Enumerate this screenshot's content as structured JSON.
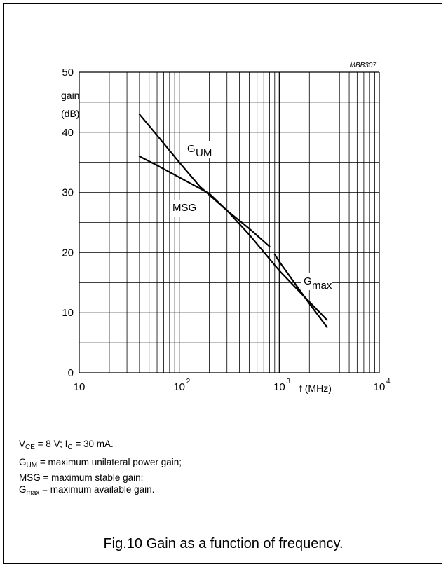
{
  "chart_data": {
    "type": "line",
    "figure_id": "MBB307",
    "y_axis": {
      "label_line1": "gain",
      "label_line2": "(dB)",
      "min": 0,
      "max": 50,
      "ticks": [
        "0",
        "10",
        "20",
        "30",
        "40",
        "50"
      ]
    },
    "x_axis": {
      "label": "f (MHz)",
      "scale": "log",
      "min": 10,
      "max": 10000,
      "ticks": [
        {
          "base": "10",
          "exp": ""
        },
        {
          "base": "10",
          "exp": "2"
        },
        {
          "base": "10",
          "exp": "3"
        },
        {
          "base": "10",
          "exp": "4"
        }
      ]
    },
    "grid": true,
    "series": [
      {
        "name": "G",
        "name_sub": "UM",
        "points": [
          [
            40,
            43
          ],
          [
            60,
            39.5
          ],
          [
            100,
            35
          ],
          [
            160,
            31
          ],
          [
            300,
            27
          ],
          [
            500,
            23
          ],
          [
            1000,
            17
          ],
          [
            2000,
            11.8
          ],
          [
            3000,
            8.8
          ]
        ]
      },
      {
        "name": "MSG",
        "name_sub": "",
        "points": [
          [
            40,
            36
          ],
          [
            60,
            34.5
          ],
          [
            100,
            32.5
          ],
          [
            200,
            29.8
          ],
          [
            300,
            27
          ],
          [
            500,
            24
          ],
          [
            800,
            21
          ]
        ]
      },
      {
        "name": "G",
        "name_sub": "max",
        "points": [
          [
            900,
            19.7
          ],
          [
            1000,
            18.5
          ],
          [
            2000,
            11.5
          ],
          [
            3000,
            7.6
          ]
        ]
      }
    ]
  },
  "notes": {
    "line1": {
      "v": "V",
      "v_sub": "CE",
      "mid": " = 8 V; I",
      "i_sub": "C",
      "end": " = 30 mA."
    },
    "line2": {
      "g": "G",
      "g_sub": "UM",
      "text": " = maximum unilateral power gain;"
    },
    "line3": {
      "text": "MSG = maximum stable gain;"
    },
    "line4": {
      "g": "G",
      "g_sub": "max",
      "text": " = maximum available gain."
    }
  },
  "caption": "Fig.10  Gain as a function of frequency."
}
